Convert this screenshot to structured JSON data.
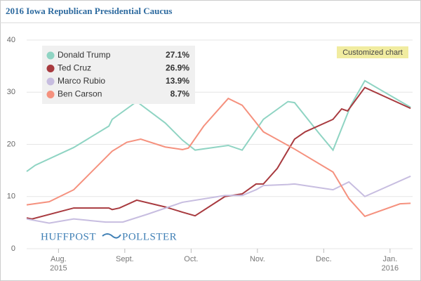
{
  "chart_data": {
    "type": "line",
    "title": "2016 Iowa Republican Presidential Caucus",
    "annotation": "Customized chart",
    "logo": [
      "HUFFPOST",
      "POLLSTER"
    ],
    "legend": "upper left",
    "grid": true,
    "ylim": [
      0,
      40
    ],
    "yticks": [
      0,
      10,
      20,
      30,
      40
    ],
    "xlim": [
      7.52,
      13.34
    ],
    "xticks": [
      {
        "value": 8,
        "label": "Aug.\n2015"
      },
      {
        "value": 9,
        "label": "Sept."
      },
      {
        "value": 10,
        "label": "Oct."
      },
      {
        "value": 11,
        "label": "Nov."
      },
      {
        "value": 12,
        "label": "Dec."
      },
      {
        "value": 13,
        "label": "Jan.\n2016"
      }
    ],
    "series": [
      {
        "name": "Donald Trump",
        "color": "#8fd4c3",
        "legend_label": "27.1%",
        "x": [
          7.52,
          7.65,
          8.23,
          8.76,
          8.81,
          9.18,
          9.61,
          9.87,
          10.06,
          10.56,
          10.77,
          11.09,
          11.46,
          11.56,
          11.93,
          12.14,
          12.41,
          12.62,
          13.31
        ],
        "values": [
          14.8,
          16,
          19.4,
          23.5,
          24.8,
          28.2,
          24.1,
          20.8,
          18.9,
          19.8,
          18.9,
          24.8,
          28.2,
          28,
          22.1,
          18.9,
          27.5,
          32.2,
          27.1
        ]
      },
      {
        "name": "Ted Cruz",
        "color": "#a83a3f",
        "legend_label": "26.9%",
        "x": [
          7.52,
          7.6,
          8.23,
          8.76,
          8.81,
          8.92,
          9.18,
          9.61,
          9.87,
          10.06,
          10.51,
          10.77,
          10.98,
          11.09,
          11.3,
          11.56,
          11.72,
          12.14,
          12.27,
          12.36,
          12.62,
          13.31
        ],
        "values": [
          5.9,
          5.7,
          7.8,
          7.8,
          7.5,
          7.8,
          9.3,
          8,
          7,
          6.3,
          10,
          10.5,
          12.4,
          12.4,
          15.4,
          21,
          22.4,
          24.8,
          26.8,
          26.4,
          30.9,
          26.9
        ]
      },
      {
        "name": "Marco Rubio",
        "color": "#c7bde0",
        "legend_label": "13.9%",
        "x": [
          7.52,
          7.86,
          8.23,
          8.71,
          8.97,
          9.34,
          9.87,
          10.51,
          10.77,
          10.98,
          11.09,
          11.46,
          11.56,
          12.14,
          12.38,
          12.62,
          13.31
        ],
        "values": [
          5.7,
          4.9,
          5.7,
          5.1,
          5.1,
          6.6,
          8.9,
          10.2,
          10.2,
          11.3,
          12.1,
          12.3,
          12.4,
          11.3,
          12.8,
          10,
          13.9
        ]
      },
      {
        "name": "Ben Carson",
        "color": "#f5917e",
        "legend_label": "8.7%",
        "x": [
          7.52,
          7.86,
          8.23,
          8.81,
          9.03,
          9.24,
          9.61,
          9.87,
          9.96,
          10.19,
          10.56,
          10.77,
          11.09,
          11.56,
          12.14,
          12.38,
          12.62,
          13.15,
          13.31
        ],
        "values": [
          8.4,
          9,
          11.3,
          18.7,
          20.4,
          21,
          19.5,
          19,
          19.3,
          23.5,
          28.8,
          27.5,
          22.4,
          19.1,
          14.7,
          9.6,
          6.2,
          8.6,
          8.7
        ]
      }
    ]
  }
}
